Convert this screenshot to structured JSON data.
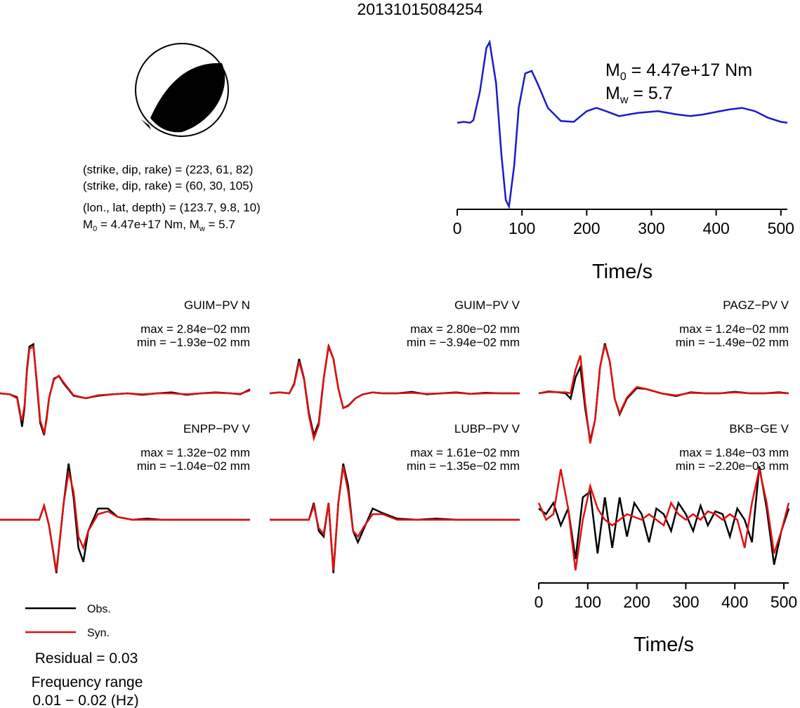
{
  "title": "20131015084254",
  "mechanism": {
    "plane1": "(strike, dip, rake) = (223, 61, 82)",
    "plane2": "(strike, dip, rake) = (60, 30, 105)",
    "location": "(lon., lat, depth) = (123.7, 9.8, 10)",
    "moment_line": {
      "m0_sym": "M",
      "m0_sub": "0",
      "m0_val": " = 4.47e+17 Nm, ",
      "mw_sym": "M",
      "mw_sub": "w",
      "mw_val": " = 5.7"
    }
  },
  "stf_annotation": {
    "m0": {
      "sym": "M",
      "sub": "0",
      "val": " = 4.47e+17 Nm"
    },
    "mw": {
      "sym": "M",
      "sub": "w",
      "val": " = 5.7"
    }
  },
  "legend": {
    "obs": "Obs.",
    "syn": "Syn."
  },
  "residual": "Residual = 0.03",
  "freq_label": "Frequency range",
  "freq_value": "0.01 − 0.02 (Hz)",
  "colors": {
    "obs": "#000000",
    "syn": "#e01010",
    "stf": "#1a1acc"
  },
  "chart_data": [
    {
      "type": "line",
      "id": "source-time-function",
      "xlabel": "Time/s",
      "x_ticks": [
        "0",
        "100",
        "200",
        "300",
        "400",
        "500"
      ],
      "xlim": [
        0,
        510
      ],
      "series": [
        {
          "x": [
            0,
            10,
            20,
            25,
            35,
            45,
            50,
            60,
            68,
            75,
            80,
            88,
            95,
            105,
            115,
            125,
            140,
            160,
            180,
            200,
            215,
            230,
            250,
            280,
            310,
            340,
            360,
            380,
            400,
            420,
            440,
            460,
            480,
            500,
            510
          ],
          "y": [
            0.02,
            0.03,
            0.02,
            0.05,
            0.4,
            0.93,
            1.0,
            0.5,
            -0.35,
            -0.92,
            -1.0,
            -0.5,
            0.2,
            0.62,
            0.65,
            0.48,
            0.2,
            0.04,
            0.03,
            0.16,
            0.2,
            0.16,
            0.1,
            0.14,
            0.16,
            0.12,
            0.1,
            0.12,
            0.15,
            0.18,
            0.2,
            0.16,
            0.08,
            0.03,
            0.02
          ]
        }
      ]
    },
    {
      "type": "line",
      "id": "GUIM-PV-N",
      "station": "GUIM−PV N",
      "max": "max = 2.84e−02 mm",
      "min": "min = −1.93e−02 mm",
      "obs": {
        "x": [
          0,
          20,
          35,
          40,
          45,
          50,
          55,
          60,
          68,
          75,
          82,
          90,
          95,
          100,
          110,
          120,
          130,
          150,
          175,
          200,
          230,
          260,
          290,
          320,
          350,
          380,
          410,
          440,
          470,
          490,
          510
        ],
        "y": [
          0.0,
          -0.02,
          -0.08,
          -0.35,
          -0.68,
          -0.3,
          0.5,
          0.95,
          1.0,
          0.2,
          -0.6,
          -0.85,
          -0.5,
          -0.1,
          0.3,
          0.35,
          0.2,
          -0.05,
          -0.1,
          -0.05,
          -0.02,
          0.0,
          -0.03,
          0.0,
          0.02,
          -0.03,
          0.0,
          0.02,
          0.0,
          -0.02,
          0.08
        ]
      },
      "syn": {
        "x": [
          0,
          20,
          35,
          40,
          45,
          50,
          55,
          60,
          68,
          75,
          82,
          90,
          95,
          100,
          110,
          120,
          130,
          150,
          175,
          200,
          230,
          260,
          290,
          320,
          350,
          380,
          410,
          440,
          470,
          490,
          510
        ],
        "y": [
          0.0,
          -0.02,
          -0.1,
          -0.4,
          -0.55,
          -0.25,
          0.45,
          0.9,
          0.95,
          0.25,
          -0.55,
          -0.8,
          -0.55,
          -0.1,
          0.28,
          0.36,
          0.22,
          -0.04,
          -0.1,
          -0.04,
          -0.02,
          0.0,
          -0.02,
          0.0,
          0.0,
          -0.02,
          0.0,
          0.01,
          0.0,
          -0.01,
          0.06
        ]
      }
    },
    {
      "type": "line",
      "id": "GUIM-PV-V",
      "station": "GUIM−PV V",
      "max": "max = 2.80e−02 mm",
      "min": "min = −3.94e−02 mm",
      "obs": {
        "x": [
          0,
          20,
          40,
          50,
          60,
          70,
          80,
          90,
          100,
          110,
          120,
          130,
          140,
          150,
          160,
          175,
          190,
          210,
          230,
          260,
          290,
          320,
          350,
          380,
          410,
          440,
          470,
          500,
          510
        ],
        "y": [
          0.0,
          0.02,
          0.0,
          0.2,
          0.7,
          0.3,
          -0.4,
          -0.85,
          -0.6,
          0.3,
          0.95,
          0.7,
          0.1,
          -0.3,
          -0.25,
          -0.1,
          -0.02,
          0.02,
          0.0,
          0.0,
          0.03,
          -0.02,
          0.0,
          0.02,
          -0.01,
          0.01,
          0.0,
          0.0,
          0.0
        ]
      },
      "syn": {
        "x": [
          0,
          20,
          40,
          50,
          60,
          70,
          80,
          90,
          100,
          110,
          120,
          130,
          140,
          150,
          160,
          175,
          190,
          210,
          230,
          260,
          290,
          320,
          350,
          380,
          410,
          440,
          470,
          500,
          510
        ],
        "y": [
          0.0,
          0.02,
          0.0,
          0.18,
          0.65,
          0.28,
          -0.45,
          -0.92,
          -0.65,
          0.28,
          0.98,
          0.7,
          0.1,
          -0.3,
          -0.26,
          -0.1,
          -0.02,
          0.02,
          0.0,
          0.0,
          0.01,
          -0.01,
          0.0,
          0.01,
          -0.01,
          0.0,
          0.0,
          0.0,
          0.0
        ]
      }
    },
    {
      "type": "line",
      "id": "PAGZ-PV-V",
      "station": "PAGZ−PV V",
      "max": "max = 1.24e−02 mm",
      "min": "min = −1.49e−02 mm",
      "obs": {
        "x": [
          0,
          20,
          40,
          55,
          65,
          75,
          85,
          95,
          105,
          115,
          125,
          135,
          145,
          155,
          165,
          180,
          200,
          220,
          250,
          280,
          310,
          340,
          370,
          400,
          430,
          460,
          490,
          510
        ],
        "y": [
          0.0,
          0.03,
          0.02,
          0.0,
          -0.1,
          0.3,
          0.5,
          -0.3,
          -0.9,
          -0.5,
          0.5,
          0.95,
          0.6,
          -0.1,
          -0.4,
          -0.1,
          0.1,
          0.08,
          0.0,
          -0.05,
          0.02,
          0.0,
          0.0,
          0.03,
          0.0,
          0.0,
          0.02,
          0.0
        ]
      },
      "syn": {
        "x": [
          0,
          20,
          40,
          55,
          65,
          75,
          85,
          95,
          105,
          115,
          125,
          135,
          145,
          155,
          165,
          180,
          200,
          220,
          250,
          280,
          310,
          340,
          370,
          400,
          430,
          460,
          490,
          510
        ],
        "y": [
          0.0,
          0.04,
          0.02,
          0.02,
          0.0,
          0.45,
          0.72,
          -0.2,
          -0.95,
          -0.5,
          0.5,
          0.92,
          0.6,
          -0.1,
          -0.38,
          -0.08,
          0.12,
          0.08,
          0.0,
          -0.04,
          0.01,
          0.0,
          0.0,
          0.02,
          0.0,
          0.0,
          0.01,
          0.0
        ]
      }
    },
    {
      "type": "line",
      "id": "ENPP-PV-V",
      "station": "ENPP−PV V",
      "max": "max = 1.32e−02 mm",
      "min": "min = −1.04e−02 mm",
      "obs": {
        "x": [
          0,
          30,
          60,
          80,
          90,
          100,
          115,
          130,
          140,
          150,
          160,
          170,
          180,
          200,
          220,
          240,
          270,
          300,
          330,
          360,
          400,
          440,
          480,
          510
        ],
        "y": [
          0.0,
          0.0,
          0.0,
          0.0,
          0.25,
          -0.1,
          -0.95,
          0.3,
          1.0,
          0.4,
          -0.5,
          -0.75,
          -0.2,
          0.2,
          0.2,
          0.05,
          0.0,
          0.02,
          0.0,
          0.0,
          0.0,
          0.0,
          0.0,
          0.0
        ]
      },
      "syn": {
        "x": [
          0,
          30,
          60,
          80,
          90,
          100,
          115,
          130,
          140,
          150,
          160,
          170,
          180,
          200,
          220,
          240,
          270,
          300,
          330,
          360,
          400,
          440,
          480,
          510
        ],
        "y": [
          0.0,
          0.0,
          0.0,
          0.0,
          0.25,
          -0.1,
          -0.92,
          0.3,
          0.85,
          0.5,
          -0.3,
          -0.5,
          -0.2,
          0.1,
          0.15,
          0.05,
          0.0,
          0.0,
          0.0,
          0.0,
          0.0,
          0.0,
          0.0,
          0.0
        ]
      }
    },
    {
      "type": "line",
      "id": "LUBP-PV-V",
      "station": "LUBP−PV V",
      "max": "max = 1.61e−02 mm",
      "min": "min = −1.35e−02 mm",
      "obs": {
        "x": [
          0,
          30,
          60,
          80,
          90,
          100,
          110,
          120,
          130,
          140,
          150,
          160,
          170,
          180,
          190,
          210,
          230,
          260,
          300,
          340,
          380,
          420,
          460,
          510
        ],
        "y": [
          0.0,
          0.0,
          0.0,
          0.0,
          0.3,
          -0.2,
          -0.3,
          0.3,
          -0.95,
          0.3,
          1.0,
          0.6,
          -0.2,
          -0.4,
          -0.2,
          0.2,
          0.12,
          0.02,
          0.0,
          0.02,
          0.0,
          0.0,
          0.0,
          0.0
        ]
      },
      "syn": {
        "x": [
          0,
          30,
          60,
          80,
          90,
          100,
          110,
          120,
          130,
          140,
          150,
          160,
          170,
          180,
          190,
          210,
          230,
          260,
          300,
          340,
          380,
          420,
          460,
          510
        ],
        "y": [
          0.0,
          0.0,
          0.0,
          0.0,
          0.25,
          -0.15,
          -0.25,
          0.3,
          -0.9,
          0.3,
          0.95,
          0.5,
          -0.2,
          -0.3,
          -0.15,
          0.1,
          0.1,
          0.0,
          0.0,
          0.0,
          0.0,
          0.0,
          0.0,
          0.0
        ]
      }
    },
    {
      "type": "line",
      "id": "BKB-GE-V",
      "station": "BKB−GE V",
      "max": "max = 1.84e−03 mm",
      "min": "min = −2.20e−03 mm",
      "xlabel": "Time/s",
      "x_ticks": [
        "0",
        "100",
        "200",
        "300",
        "400",
        "500"
      ],
      "xlim": [
        0,
        510
      ],
      "obs": {
        "x": [
          0,
          15,
          30,
          45,
          60,
          75,
          90,
          105,
          120,
          135,
          150,
          165,
          180,
          195,
          210,
          225,
          240,
          255,
          270,
          285,
          300,
          315,
          330,
          345,
          360,
          375,
          390,
          405,
          420,
          435,
          450,
          465,
          480,
          495,
          510
        ],
        "y": [
          0.2,
          0.1,
          0.3,
          -0.1,
          0.2,
          -0.7,
          0.4,
          0.5,
          -0.6,
          0.4,
          -0.5,
          0.4,
          -0.3,
          0.3,
          0.1,
          -0.4,
          0.2,
          0.1,
          -0.2,
          0.3,
          0.1,
          -0.2,
          0.25,
          -0.1,
          0.15,
          0.1,
          -0.3,
          0.2,
          0.0,
          -0.4,
          0.95,
          0.2,
          -0.8,
          -0.2,
          0.2
        ]
      },
      "syn": {
        "x": [
          0,
          15,
          30,
          45,
          60,
          75,
          90,
          105,
          120,
          135,
          150,
          165,
          180,
          195,
          210,
          225,
          240,
          255,
          270,
          285,
          300,
          315,
          330,
          345,
          360,
          375,
          390,
          405,
          420,
          435,
          450,
          465,
          480,
          495,
          510
        ],
        "y": [
          0.3,
          0.0,
          0.1,
          0.9,
          0.2,
          -0.9,
          0.0,
          0.6,
          0.2,
          0.0,
          -0.1,
          0.0,
          0.1,
          0.05,
          0.0,
          0.1,
          0.0,
          -0.1,
          0.3,
          0.1,
          0.0,
          0.1,
          0.0,
          0.15,
          0.1,
          0.0,
          0.1,
          0.0,
          -0.5,
          0.3,
          0.9,
          0.3,
          -0.6,
          -0.2,
          0.3
        ]
      }
    }
  ]
}
